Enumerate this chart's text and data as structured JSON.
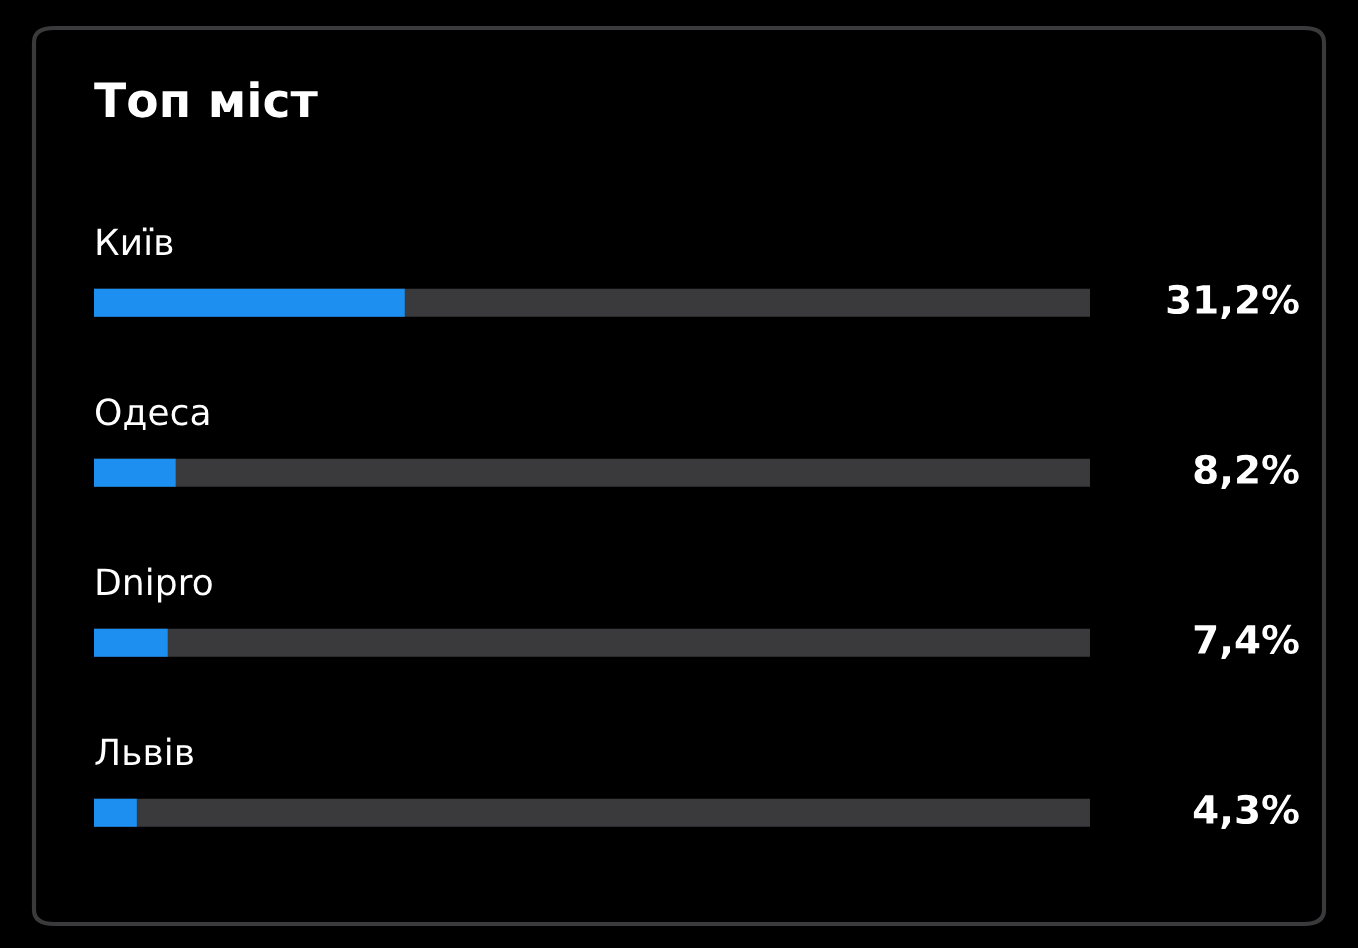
{
  "chart_data": {
    "type": "bar",
    "orientation": "horizontal",
    "title": "Топ міст",
    "categories": [
      "Київ",
      "Одеса",
      "Dnipro",
      "Львів"
    ],
    "values": [
      31.2,
      8.2,
      7.4,
      4.3
    ],
    "value_labels": [
      "31,2%",
      "8,2%",
      "7,4%",
      "4,3%"
    ],
    "color": "#1d8ff0",
    "xlim": [
      0,
      100
    ]
  }
}
